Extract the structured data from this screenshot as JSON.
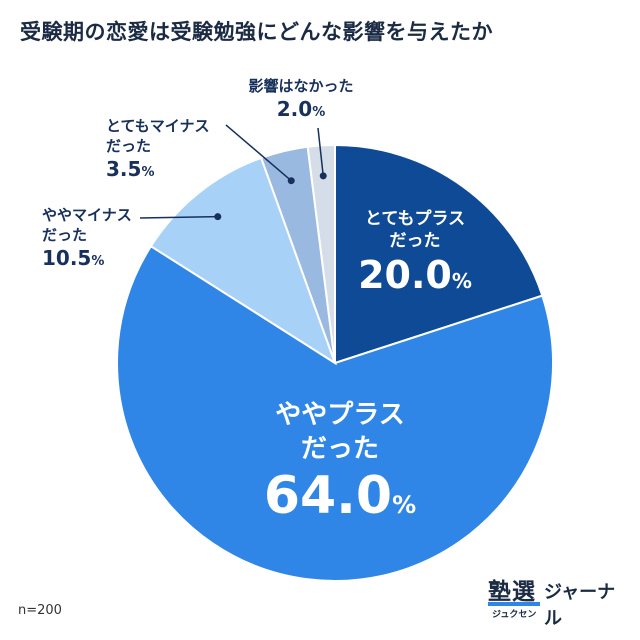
{
  "chart_data": {
    "type": "pie",
    "title": "受験期の恋愛は受験勉強にどんな影響を与えたか",
    "unit": "%",
    "sample": "n=200",
    "slices": [
      {
        "label_line1": "とてもプラス",
        "label_line2": "だった",
        "value": 20.0,
        "value_text": "20.0",
        "color": "#0f4a96"
      },
      {
        "label_line1": "ややプラス",
        "label_line2": "だった",
        "value": 64.0,
        "value_text": "64.0",
        "color": "#2f86e6"
      },
      {
        "label_line1": "ややマイナス",
        "label_line2": "だった",
        "value": 10.5,
        "value_text": "10.5",
        "color": "#a8d1f7"
      },
      {
        "label_line1": "とてもマイナス",
        "label_line2": "だった",
        "value": 3.5,
        "value_text": "3.5",
        "color": "#9ab9e0"
      },
      {
        "label_line1": "影響はなかった",
        "label_line2": "",
        "value": 2.0,
        "value_text": "2.0",
        "color": "#d4dde8"
      }
    ]
  },
  "logo": {
    "kanji": "塾選",
    "ruby": "ジュクセン",
    "kana": "ジャーナル"
  }
}
